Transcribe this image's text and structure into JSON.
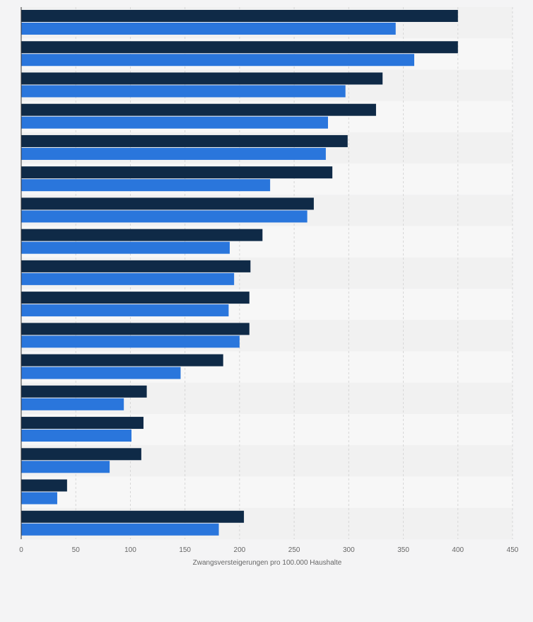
{
  "chart_data": {
    "type": "bar",
    "orientation": "horizontal",
    "categories": [
      "",
      "",
      "",
      "",
      "",
      "",
      "",
      "",
      "",
      "",
      "",
      "",
      "",
      "",
      "",
      "",
      ""
    ],
    "series": [
      {
        "color": "#0f2a47",
        "values": [
          400,
          400,
          331,
          325,
          299,
          285,
          268,
          221,
          210,
          209,
          209,
          185,
          115,
          112,
          110,
          42,
          204
        ]
      },
      {
        "color": "#2a76dc",
        "values": [
          343,
          360,
          297,
          281,
          279,
          228,
          262,
          191,
          195,
          190,
          200,
          146,
          94,
          101,
          81,
          33,
          181
        ]
      }
    ],
    "xlabel": "Zwangsversteigerungen pro 100.000 Haushalte",
    "ylabel": "",
    "xlim": [
      0,
      450
    ],
    "xticks": [
      "0",
      "50",
      "100",
      "150",
      "200",
      "250",
      "300",
      "350",
      "400",
      "450"
    ],
    "grid": true,
    "legend": "none"
  },
  "colors": {
    "background": "#f4f4f5",
    "band_light": "#f7f7f7",
    "band_dark": "#f1f1f1",
    "grid": "#d6d6d6",
    "axis": "#333333"
  }
}
